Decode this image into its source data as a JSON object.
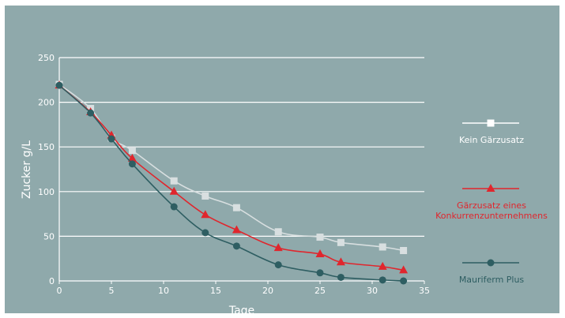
{
  "chart_data": {
    "type": "line",
    "title": "",
    "xlabel": "Tage",
    "ylabel": "Zucker g/L",
    "xlim": [
      0,
      35
    ],
    "ylim": [
      0,
      250
    ],
    "x_ticks": [
      "0",
      "5",
      "10",
      "15",
      "20",
      "25",
      "30",
      "35"
    ],
    "y_ticks": [
      "0",
      "50",
      "100",
      "150",
      "200",
      "250"
    ],
    "grid": "horizontal",
    "legend_position": "right",
    "colors": {
      "background": "#8fa9ab",
      "plot_background": "#8fa9ab",
      "grid": "#ffffff",
      "axis": "#ffffff"
    },
    "series": [
      {
        "name": "Kein Gärzusatz",
        "marker": "square",
        "color": "#d8dfe0",
        "legend_color": "#ffffff",
        "x": [
          0,
          3,
          5,
          7,
          11,
          14,
          17,
          21,
          25,
          27,
          31,
          33
        ],
        "values": [
          220,
          193,
          160,
          146,
          112,
          95,
          82,
          55,
          49,
          43,
          38,
          34
        ]
      },
      {
        "name": "Gärzusatz eines Konkurrenzunternehmens",
        "legend_lines": [
          "Gärzusatz eines",
          "Konkurrenzunternehmens"
        ],
        "marker": "triangle",
        "color": "#e0262d",
        "legend_color": "#e0262d",
        "x": [
          0,
          3,
          5,
          7,
          11,
          14,
          17,
          21,
          25,
          27,
          31,
          33
        ],
        "values": [
          219,
          189,
          163,
          137,
          100,
          74,
          57,
          37,
          30,
          21,
          16,
          12
        ]
      },
      {
        "name": "Mauriferm Plus",
        "marker": "circle",
        "color": "#2e5e62",
        "legend_color": "#2e5e62",
        "x": [
          0,
          3,
          5,
          7,
          11,
          14,
          17,
          21,
          25,
          27,
          31,
          33
        ],
        "values": [
          219,
          188,
          159,
          131,
          83,
          54,
          39,
          18,
          9,
          4,
          1,
          0
        ]
      }
    ]
  }
}
